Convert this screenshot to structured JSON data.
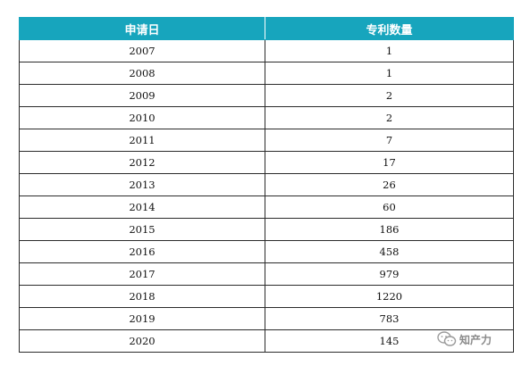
{
  "table": {
    "headers": [
      "申请日",
      "专利数量"
    ],
    "rows": [
      [
        "2007",
        "1"
      ],
      [
        "2008",
        "1"
      ],
      [
        "2009",
        "2"
      ],
      [
        "2010",
        "2"
      ],
      [
        "2011",
        "7"
      ],
      [
        "2012",
        "17"
      ],
      [
        "2013",
        "26"
      ],
      [
        "2014",
        "60"
      ],
      [
        "2015",
        "186"
      ],
      [
        "2016",
        "458"
      ],
      [
        "2017",
        "979"
      ],
      [
        "2018",
        "1220"
      ],
      [
        "2019",
        "783"
      ],
      [
        "2020",
        "145"
      ]
    ]
  },
  "watermark": {
    "icon": "wechat-icon",
    "text": "知产力"
  },
  "colors": {
    "header_bg": "#17a5bd",
    "header_text": "#ffffff",
    "border": "#2b2b2b"
  }
}
